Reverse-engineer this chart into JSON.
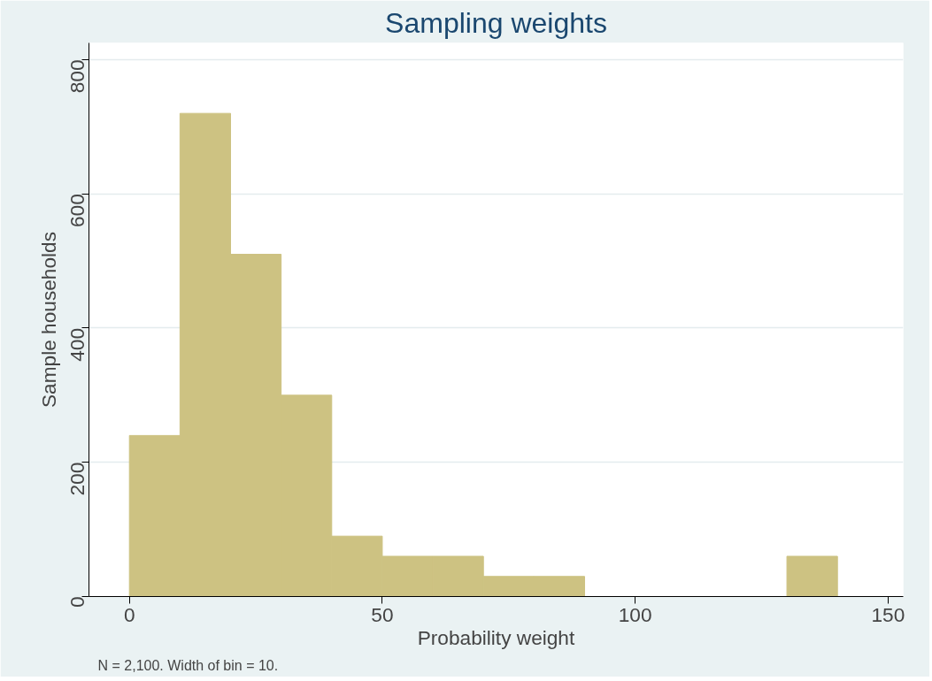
{
  "chart_data": {
    "type": "histogram",
    "title": "Sampling weights",
    "xlabel": "Probability weight",
    "ylabel": "Sample households",
    "bins": [
      0,
      10,
      20,
      30,
      40,
      50,
      60,
      70,
      80,
      90,
      100,
      110,
      120,
      130,
      140
    ],
    "values": [
      240,
      720,
      510,
      300,
      90,
      60,
      60,
      30,
      30,
      0,
      0,
      0,
      0,
      60
    ],
    "color": "#cdc282",
    "xlim": [
      -8,
      153
    ],
    "ylim": [
      0,
      825
    ],
    "xticks": [
      0,
      50,
      100,
      150
    ],
    "yticks": [
      0,
      200,
      400,
      600,
      800
    ],
    "grid": "y",
    "annotations": [
      "N = 2,100. Width of bin = 10."
    ]
  }
}
